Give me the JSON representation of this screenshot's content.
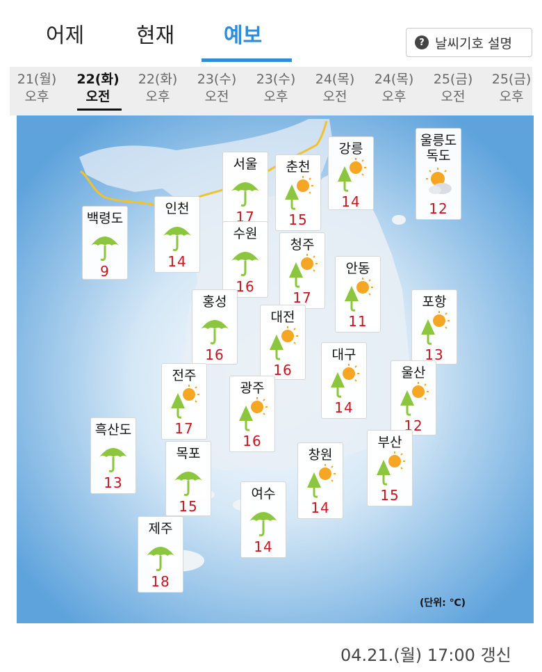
{
  "tabs": [
    {
      "label": "어제",
      "active": false
    },
    {
      "label": "현재",
      "active": false
    },
    {
      "label": "예보",
      "active": true
    }
  ],
  "legend_button": {
    "icon": "question-icon",
    "label": "날씨기호 설명"
  },
  "times": [
    {
      "day": "21(월)",
      "period": "오후",
      "selected": false
    },
    {
      "day": "22(화)",
      "period": "오전",
      "selected": true
    },
    {
      "day": "22(화)",
      "period": "오후",
      "selected": false
    },
    {
      "day": "23(수)",
      "period": "오전",
      "selected": false
    },
    {
      "day": "23(수)",
      "period": "오후",
      "selected": false
    },
    {
      "day": "24(목)",
      "period": "오전",
      "selected": false
    },
    {
      "day": "24(목)",
      "period": "오후",
      "selected": false
    },
    {
      "day": "25(금)",
      "period": "오전",
      "selected": false
    },
    {
      "day": "25(금)",
      "period": "오후",
      "selected": false
    }
  ],
  "cities": [
    {
      "name": "백령도",
      "temp": "9",
      "icon": "rain-icon"
    },
    {
      "name": "인천",
      "temp": "14",
      "icon": "rain-icon"
    },
    {
      "name": "서울",
      "temp": "17",
      "icon": "rain-icon"
    },
    {
      "name": "춘천",
      "temp": "15",
      "icon": "rain-sun-icon"
    },
    {
      "name": "강릉",
      "temp": "14",
      "icon": "rain-sun-icon"
    },
    {
      "name": "울릉도\n독도",
      "temp": "12",
      "icon": "partly-cloudy-icon"
    },
    {
      "name": "수원",
      "temp": "16",
      "icon": "rain-icon"
    },
    {
      "name": "청주",
      "temp": "17",
      "icon": "rain-sun-icon"
    },
    {
      "name": "안동",
      "temp": "11",
      "icon": "rain-sun-icon"
    },
    {
      "name": "홍성",
      "temp": "16",
      "icon": "rain-icon"
    },
    {
      "name": "대전",
      "temp": "16",
      "icon": "rain-sun-icon"
    },
    {
      "name": "포항",
      "temp": "13",
      "icon": "rain-sun-icon"
    },
    {
      "name": "대구",
      "temp": "14",
      "icon": "rain-sun-icon"
    },
    {
      "name": "전주",
      "temp": "17",
      "icon": "rain-sun-icon"
    },
    {
      "name": "광주",
      "temp": "16",
      "icon": "rain-sun-icon"
    },
    {
      "name": "울산",
      "temp": "12",
      "icon": "rain-sun-icon"
    },
    {
      "name": "흑산도",
      "temp": "13",
      "icon": "rain-icon"
    },
    {
      "name": "목포",
      "temp": "15",
      "icon": "rain-icon"
    },
    {
      "name": "창원",
      "temp": "14",
      "icon": "rain-sun-icon"
    },
    {
      "name": "부산",
      "temp": "15",
      "icon": "rain-sun-icon"
    },
    {
      "name": "여수",
      "temp": "14",
      "icon": "rain-icon"
    },
    {
      "name": "제주",
      "temp": "18",
      "icon": "rain-icon"
    }
  ],
  "unit_label": "(단위: ℃)",
  "updated": "04.21.(월) 17:00 갱신",
  "colors": {
    "accent": "#2f8cd8",
    "temp": "#c8141e",
    "umbrella": "#8cc63f",
    "sun": "#f5a623"
  }
}
